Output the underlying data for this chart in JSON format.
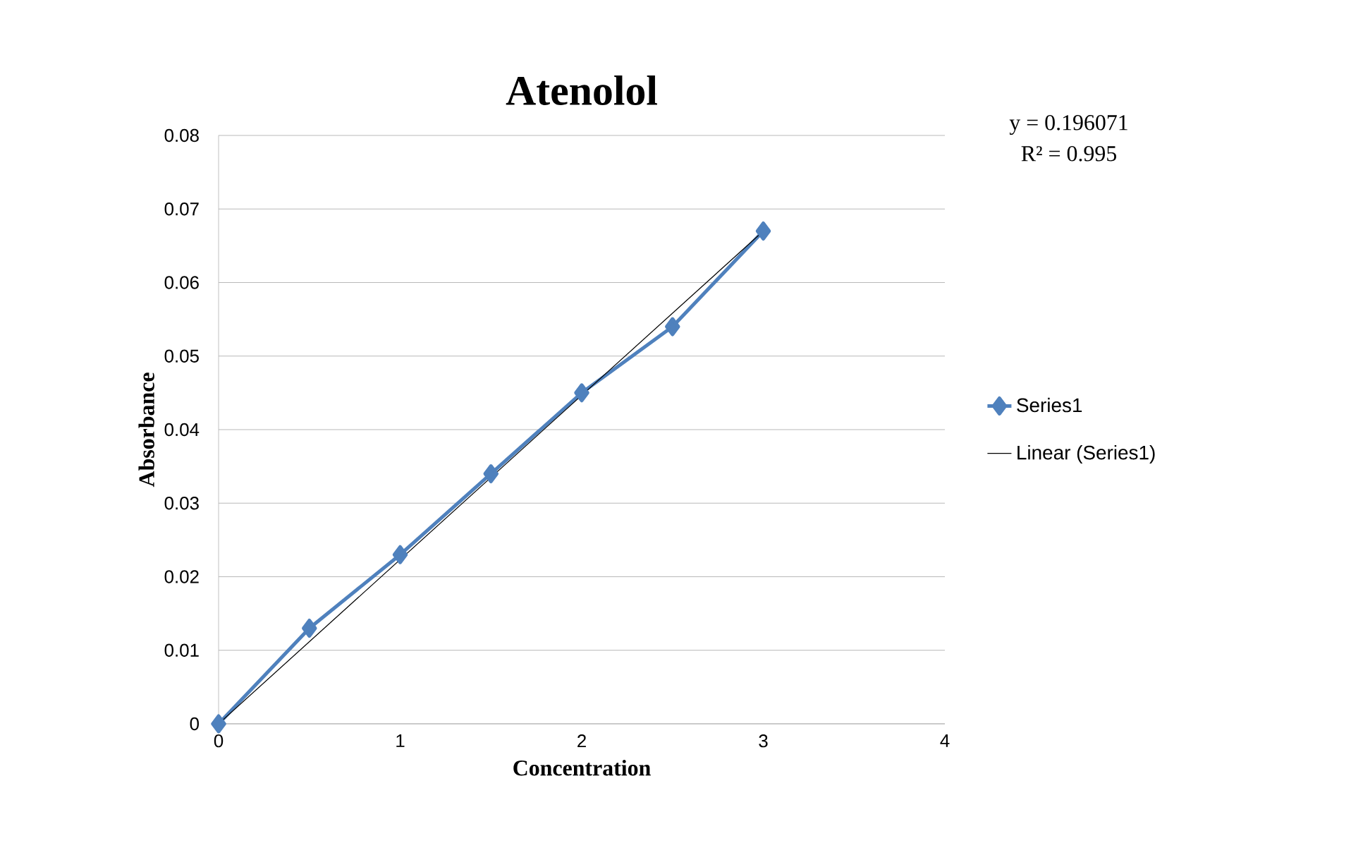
{
  "chart_data": {
    "type": "line",
    "title": "Atenolol",
    "xlabel": "Concentration",
    "ylabel": "Absorbance",
    "xlim": [
      0,
      4
    ],
    "xticks": [
      0,
      1,
      2,
      3,
      4
    ],
    "ylim": [
      0,
      0.08
    ],
    "yticks": [
      0,
      0.01,
      0.02,
      0.03,
      0.04,
      0.05,
      0.06,
      0.07,
      0.08
    ],
    "grid": "y",
    "legend": "right",
    "series": [
      {
        "name": "Series1",
        "color": "#4f81bd",
        "marker": "diamond",
        "x": [
          0,
          0.5,
          1,
          1.5,
          2,
          2.5,
          3
        ],
        "values": [
          0,
          0.013,
          0.023,
          0.034,
          0.045,
          0.054,
          0.067
        ]
      },
      {
        "name": "Linear (Series1)",
        "color": "#000000",
        "marker": "none",
        "x": [
          0,
          3
        ],
        "values": [
          0,
          0.067
        ]
      }
    ],
    "annotations": [
      "y = 0.196071",
      "R² = 0.995"
    ]
  }
}
